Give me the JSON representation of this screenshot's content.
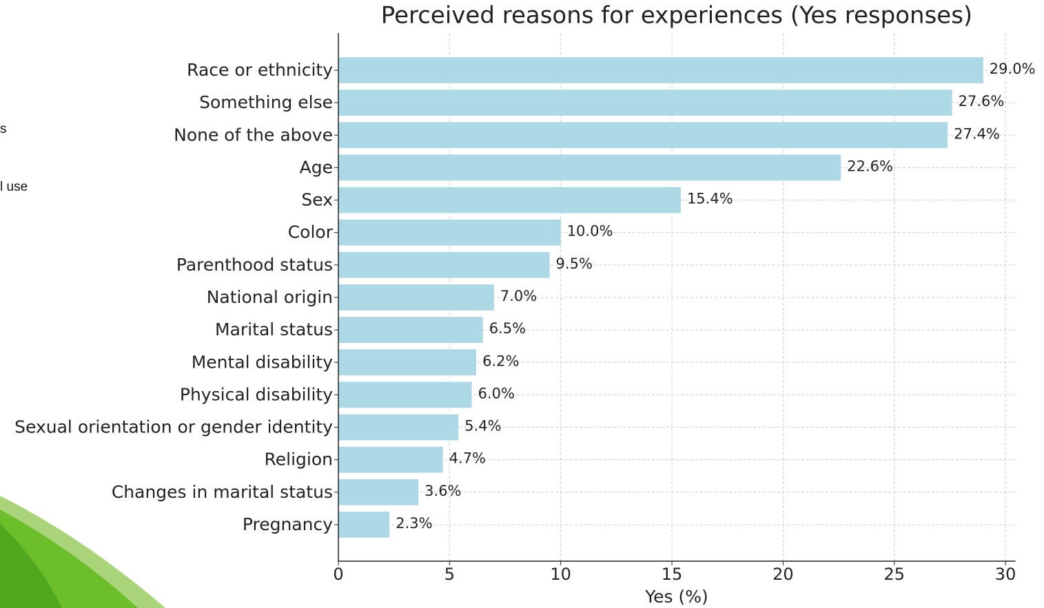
{
  "slide": {
    "fragments": [
      "s",
      "l use"
    ]
  },
  "chart_data": {
    "type": "barh",
    "title": "Perceived reasons for experiences (Yes responses)",
    "x_label": "Yes (%)",
    "categories": [
      "Race or ethnicity",
      "Something else",
      "None of the above",
      "Age",
      "Sex",
      "Color",
      "Parenthood status",
      "National origin",
      "Marital status",
      "Mental disability",
      "Physical disability",
      "Sexual orientation or gender identity",
      "Religion",
      "Changes in marital status",
      "Pregnancy"
    ],
    "values": [
      29.0,
      27.6,
      27.4,
      22.6,
      15.4,
      10.0,
      9.5,
      7.0,
      6.5,
      6.2,
      6.0,
      5.4,
      4.7,
      3.6,
      2.3
    ],
    "value_labels": [
      "29.0%",
      "27.6%",
      "27.4%",
      "22.6%",
      "15.4%",
      "10.0%",
      "9.5%",
      "7.0%",
      "6.5%",
      "6.2%",
      "6.0%",
      "5.4%",
      "4.7%",
      "3.6%",
      "2.3%"
    ],
    "color": "#add8e6",
    "xlim": [
      0,
      30.45
    ],
    "xticks": [
      0,
      5,
      10,
      15,
      20,
      25,
      30
    ],
    "grid": true
  }
}
